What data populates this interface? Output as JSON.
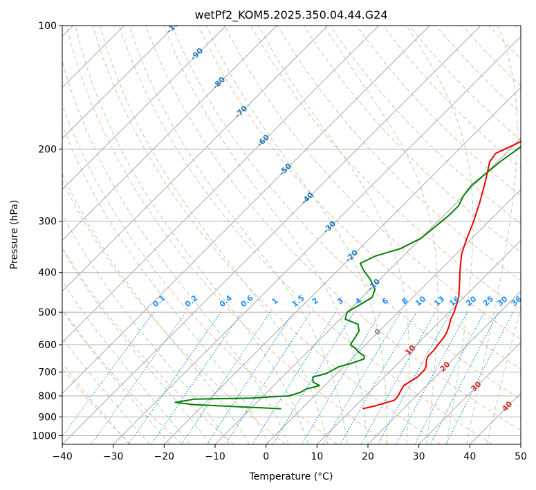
{
  "chart_data": {
    "type": "line",
    "title": "wetPf2_KOM5.2025.350.04.44.G24",
    "xlabel": "Temperature (°C)",
    "ylabel": "Pressure (hPa)",
    "xlim": [
      -40,
      50
    ],
    "ylim": [
      1050,
      100
    ],
    "x_ticks": [
      -40,
      -30,
      -20,
      -10,
      0,
      10,
      20,
      30,
      40,
      50
    ],
    "y_ticks": [
      1000,
      900,
      800,
      700,
      600,
      500,
      400,
      300,
      200,
      100
    ],
    "series": [
      {
        "name": "Temperature",
        "color": "#ee0000",
        "points": [
          [
            12,
            860
          ],
          [
            14,
            845
          ],
          [
            16.5,
            820
          ],
          [
            16.5,
            805
          ],
          [
            16,
            780
          ],
          [
            15.5,
            755
          ],
          [
            16.5,
            720
          ],
          [
            16.5,
            690
          ],
          [
            16,
            675
          ],
          [
            15,
            655
          ],
          [
            14.5,
            640
          ],
          [
            14.5,
            620
          ],
          [
            14.2,
            600
          ],
          [
            14,
            580
          ],
          [
            13.5,
            560
          ],
          [
            12.7,
            540
          ],
          [
            11.7,
            520
          ],
          [
            11,
            500
          ],
          [
            9,
            460
          ],
          [
            6,
            420
          ],
          [
            3.5,
            390
          ],
          [
            1,
            360
          ],
          [
            -1,
            330
          ],
          [
            -3,
            300
          ],
          [
            -5.5,
            270
          ],
          [
            -8.5,
            240
          ],
          [
            -11.5,
            215
          ],
          [
            -12,
            205
          ],
          [
            -10,
            195
          ],
          [
            -8,
            185
          ],
          [
            -4,
            175
          ],
          [
            0,
            165
          ],
          [
            3,
            158
          ],
          [
            4.5,
            152
          ],
          [
            6,
            148
          ],
          [
            6.5,
            142
          ],
          [
            7,
            136
          ],
          [
            9,
            130
          ],
          [
            11,
            126
          ],
          [
            13,
            120
          ],
          [
            14,
            115
          ],
          [
            14.5,
            110
          ],
          [
            15.5,
            105
          ],
          [
            16.5,
            100
          ]
        ]
      },
      {
        "name": "Dewpoint",
        "color": "#008000",
        "points": [
          [
            -4,
            860
          ],
          [
            -13,
            850
          ],
          [
            -22,
            840
          ],
          [
            -26,
            830
          ],
          [
            -23,
            815
          ],
          [
            -12,
            810
          ],
          [
            -5,
            800
          ],
          [
            -3.5,
            785
          ],
          [
            -3,
            770
          ],
          [
            -1,
            755
          ],
          [
            -3,
            740
          ],
          [
            -4,
            720
          ],
          [
            -2,
            705
          ],
          [
            -1,
            680
          ],
          [
            1,
            665
          ],
          [
            2.5,
            650
          ],
          [
            2,
            640
          ],
          [
            0,
            625
          ],
          [
            -1,
            615
          ],
          [
            -3,
            600
          ],
          [
            -3.5,
            575
          ],
          [
            -4,
            555
          ],
          [
            -5.5,
            535
          ],
          [
            -9,
            520
          ],
          [
            -10,
            500
          ],
          [
            -9,
            480
          ],
          [
            -8,
            460
          ],
          [
            -9,
            440
          ],
          [
            -12,
            415
          ],
          [
            -15,
            395
          ],
          [
            -17,
            380
          ],
          [
            -15.5,
            365
          ],
          [
            -12,
            350
          ],
          [
            -10,
            330
          ],
          [
            -9.5,
            310
          ],
          [
            -9,
            290
          ],
          [
            -9,
            275
          ],
          [
            -10,
            260
          ],
          [
            -10.5,
            245
          ],
          [
            -10,
            230
          ],
          [
            -9.5,
            215
          ],
          [
            -8.5,
            200
          ],
          [
            -8,
            185
          ],
          [
            -9,
            175
          ],
          [
            -12.5,
            165
          ],
          [
            -12,
            158
          ],
          [
            -9,
            150
          ],
          [
            -6.5,
            145
          ],
          [
            -5.5,
            140
          ],
          [
            -6,
            132
          ],
          [
            -7,
            126
          ],
          [
            -6.5,
            120
          ],
          [
            -5,
            115
          ],
          [
            -3,
            110
          ],
          [
            -1,
            105
          ],
          [
            0.5,
            100
          ]
        ]
      }
    ],
    "dry_adiabat_labels": [
      "-100",
      "-90",
      "-80",
      "-70",
      "-60",
      "-50",
      "-40",
      "-30",
      "-20",
      "-10"
    ],
    "dry_adiabat_label_color": "#1f77b4",
    "mixing_ratio_labels": [
      "0.1",
      "0.2",
      "0.4",
      "0.6",
      "1",
      "1.5",
      "2",
      "3",
      "4",
      "6",
      "8",
      "10",
      "13",
      "16",
      "20",
      "25",
      "30",
      "36"
    ],
    "mixing_ratio_color": "#1e90ff",
    "moist_adiabat_labels": [
      "0",
      "10",
      "20",
      "30",
      "40"
    ],
    "moist_adiabat_label_color": "#d62728"
  }
}
